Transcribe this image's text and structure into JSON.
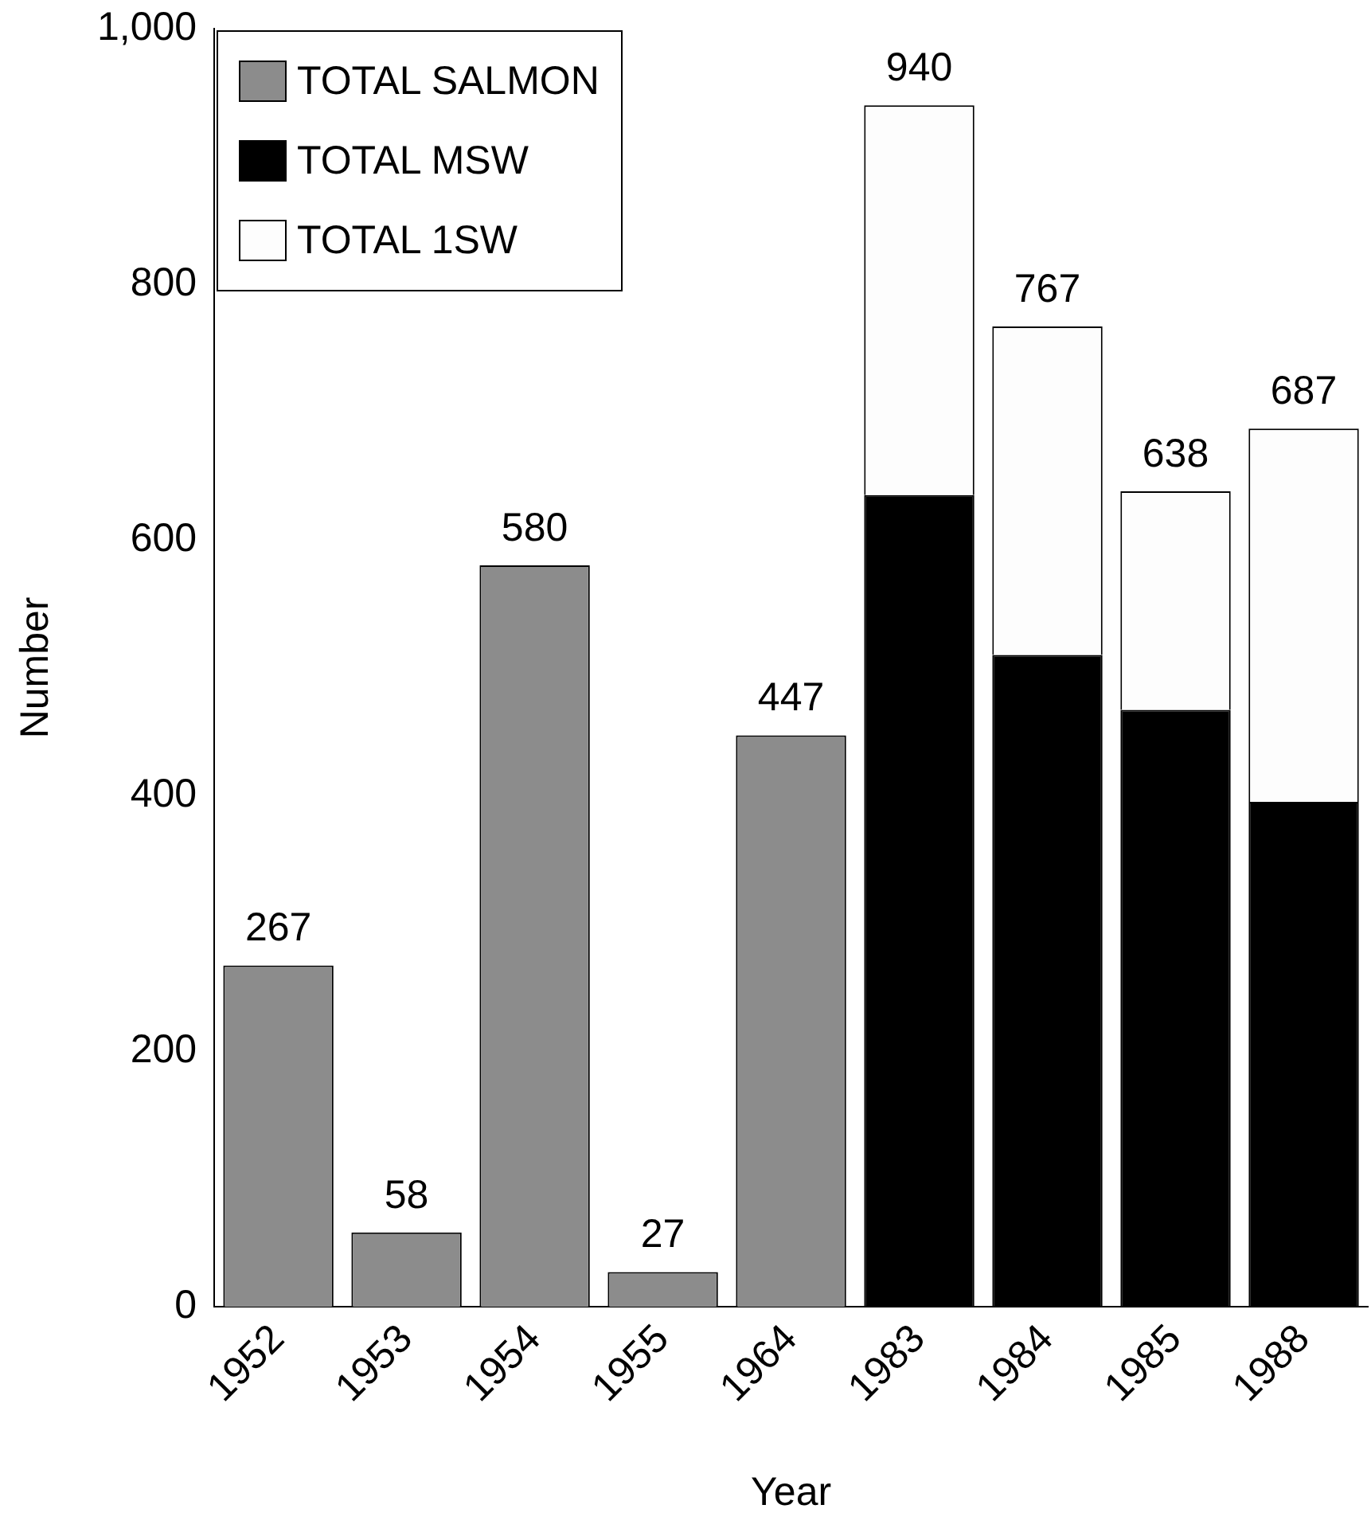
{
  "chart_data": {
    "type": "bar",
    "xlabel": "Year",
    "ylabel": "Number",
    "stacked": true,
    "categories": [
      "1952",
      "1953",
      "1954",
      "1955",
      "1964",
      "1983",
      "1984",
      "1985",
      "1988"
    ],
    "series": [
      {
        "name": "TOTAL SALMON",
        "color": "#8c8c8c",
        "values": [
          267,
          58,
          580,
          27,
          447,
          null,
          null,
          null,
          null
        ]
      },
      {
        "name": "TOTAL MSW",
        "color": "#000000",
        "values": [
          null,
          null,
          null,
          null,
          null,
          635,
          510,
          467,
          395
        ]
      },
      {
        "name": "TOTAL 1SW",
        "color": "#fdfdfd",
        "values": [
          null,
          null,
          null,
          null,
          null,
          305,
          257,
          171,
          292
        ]
      }
    ],
    "totals": [
      "267",
      "58",
      "580",
      "27",
      "447",
      "940",
      "767",
      "638",
      "687"
    ],
    "ylim": [
      0,
      1000
    ],
    "yticks": [
      0,
      200,
      400,
      600,
      800,
      {
        "value": 1000,
        "label": "1,000"
      }
    ],
    "grid": false,
    "legend": "top left"
  }
}
